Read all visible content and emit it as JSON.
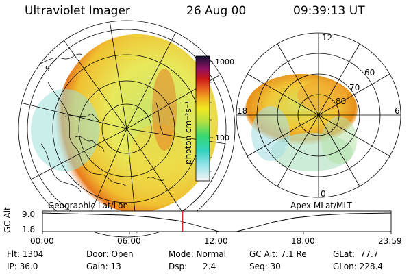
{
  "header": {
    "instrument": "Ultraviolet Imager",
    "date": "26 Aug 00",
    "time": "09:39:13 UT"
  },
  "colorbar": {
    "unit_label": "photon cm⁻²s⁻¹",
    "ticks": [
      "1000",
      "100"
    ]
  },
  "left_panel": {
    "caption": "Geographic Lat/Lon",
    "lat_label": "9"
  },
  "right_panel": {
    "caption": "Apex MLat/MLT",
    "mlt_labels": {
      "top": "12",
      "left": "18",
      "right": "6",
      "bottom": "0"
    },
    "mlat_labels": [
      "60",
      "70",
      "80"
    ]
  },
  "altitude_plot": {
    "ylabel": "GC Alt",
    "yticks": [
      "9.0",
      "1.8"
    ],
    "xticks": [
      "00:00",
      "06:00",
      "12:00",
      "18:00",
      "23:59"
    ],
    "marker_time_hours": 9.65
  },
  "status": {
    "flt": "Flt: 1304",
    "ip": "IP: 36.0",
    "door": "Door: Open",
    "gain": "Gain: 13",
    "mode": "Mode: Normal",
    "dsp_label": "Dsp:",
    "dsp_value": "2.4",
    "gcalt": "GC Alt: 7.1 Re",
    "seq": "Seq: 30",
    "glat": "GLat:  77.7",
    "glon": "GLon: 228.4"
  },
  "colors": {
    "marker": "#d81818",
    "axis": "#000000"
  }
}
